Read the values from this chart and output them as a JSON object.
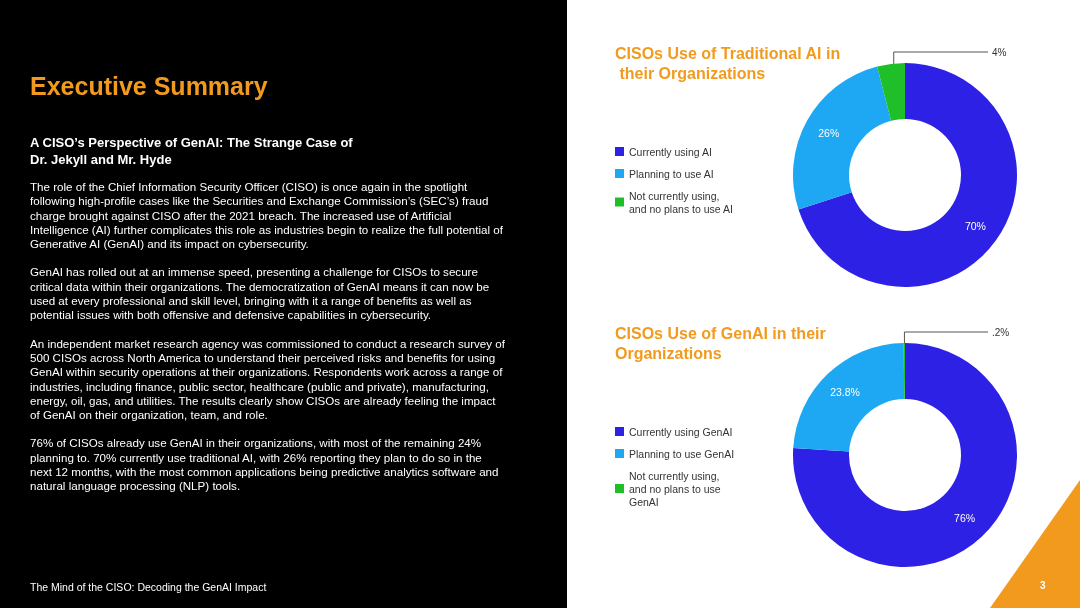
{
  "chart_data": [
    {
      "type": "other",
      "title": "Executive Summary",
      "subtitle": "A CISO’s Perspective of GenAI: The Strange Case of Dr. Jekyll and Mr. Hyde",
      "annotations": [
        "The role of the Chief Information Security Officer (CISO) is once again in the spotlight following high-profile cases like the Securities and Exchange Commission’s (SEC’s) fraud charge brought against CISO after the 2021 breach. The increased use of Artificial Intelligence (AI) further complicates this role as industries begin to realize the full potential of Generative AI (GenAI) and its impact on cybersecurity.",
        "GenAI has rolled out at an immense speed, presenting a challenge for CISOs to secure critical data within their organizations. The democratization of GenAI means it can now be used at every professional and skill level, bringing with it a range of benefits as well as potential issues with both offensive and defensive capabilities in cybersecurity.",
        "An independent market research agency was commissioned to conduct a research survey of 500 CISOs across North America to understand their perceived risks and benefits for using GenAI within security operations at their organizations. Respondents work across a range of industries, including finance, public sector, healthcare (public and private), manufacturing, energy, oil, gas, and utilities. The results clearly show CISOs are already feeling the impact of GenAI on their organization, team, and role.",
        "76% of CISOs already use GenAI in their organizations, with most of the remaining 24% planning to. 70% currently use traditional AI, with 26% reporting they plan to do so in the next 12 months, with the most common applications being predictive analytics software and natural language processing (NLP) tools.",
        "The Mind of the CISO: Decoding the GenAI Impact",
        "3"
      ]
    },
    {
      "type": "donut",
      "title": "CISOs Use of Traditional AI in their Organizations",
      "categories": [
        "Currently using AI",
        "Planning to use AI",
        "Not currently using, and no plans to use AI"
      ],
      "values": [
        70,
        26,
        4
      ],
      "value_labels": [
        "70%",
        "26%",
        "4%"
      ],
      "colors": [
        "#2d21e6",
        "#1ea7f2",
        "#1fbf2a"
      ],
      "legend": "left"
    },
    {
      "type": "donut",
      "title": "CISOs Use of GenAI in their Organizations",
      "categories": [
        "Currently using GenAI",
        "Planning to use GenAI",
        "Not currently using, and no plans to use GenAI"
      ],
      "values": [
        76,
        23.8,
        0.2
      ],
      "value_labels": [
        "76%",
        "23.8%",
        ".2%"
      ],
      "colors": [
        "#2d21e6",
        "#1ea7f2",
        "#1fbf2a"
      ],
      "legend": "left"
    }
  ]
}
